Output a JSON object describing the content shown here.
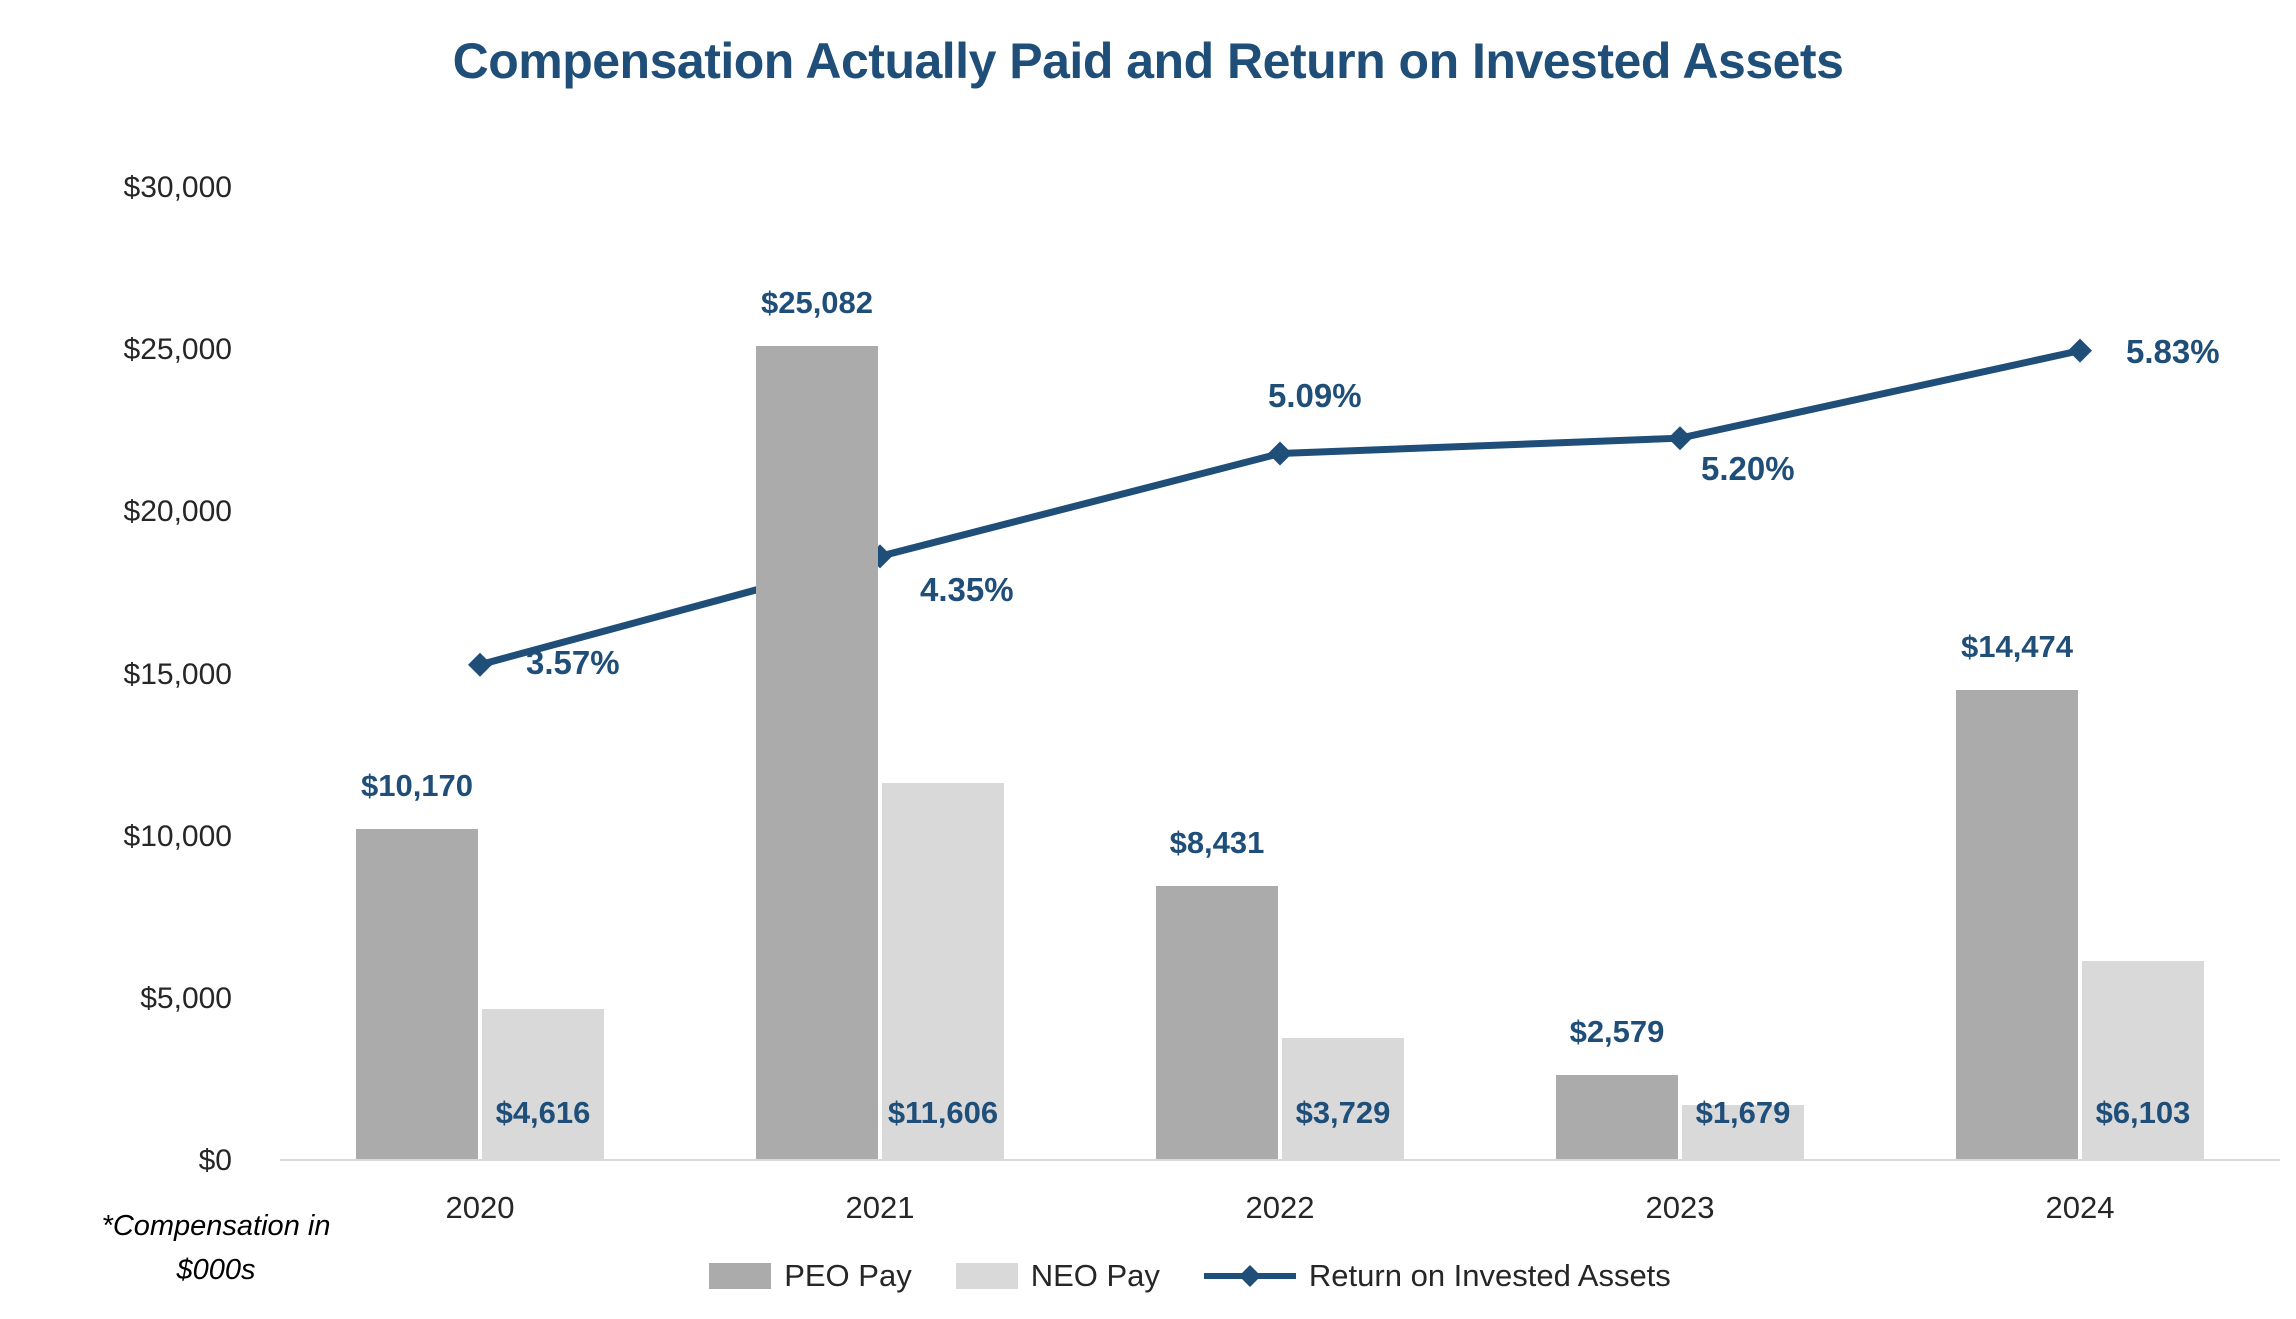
{
  "title": "Compensation Actually Paid and Return on Invested Assets",
  "footnote": "*Compensation in\n$000s",
  "colors": {
    "accent_navy": "#1F4E79",
    "peo_bar": "#ABABAB",
    "neo_bar": "#D9D9D9",
    "axis_line": "#D9D9D9",
    "tick_text": "#262626"
  },
  "chart_data": {
    "type": "bar",
    "subtype": "grouped-bar-with-line",
    "title": "Compensation Actually Paid and Return on Invested Assets",
    "categories": [
      "2020",
      "2021",
      "2022",
      "2023",
      "2024"
    ],
    "series": [
      {
        "name": "PEO Pay",
        "type": "bar",
        "color": "#ABABAB",
        "values": [
          10170,
          25082,
          8431,
          2579,
          14474
        ],
        "labels": [
          "$10,170",
          "$25,082",
          "$8,431",
          "$2,579",
          "$14,474"
        ]
      },
      {
        "name": "NEO Pay",
        "type": "bar",
        "color": "#D9D9D9",
        "values": [
          4616,
          11606,
          3729,
          1679,
          6103
        ],
        "labels": [
          "$4,616",
          "$11,606",
          "$3,729",
          "$1,679",
          "$6,103"
        ]
      },
      {
        "name": "Return on Invested Assets",
        "type": "line",
        "color": "#1F4E79",
        "values_pct": [
          3.57,
          4.35,
          5.09,
          5.2,
          5.83
        ],
        "labels": [
          "3.57%",
          "4.35%",
          "5.09%",
          "5.20%",
          "5.83%"
        ]
      }
    ],
    "y_axis": {
      "min": 0,
      "max": 30000,
      "step": 5000,
      "tick_labels": [
        "$0",
        "$5,000",
        "$10,000",
        "$15,000",
        "$20,000",
        "$25,000",
        "$30,000"
      ],
      "units_note": "*Compensation in $000s"
    },
    "secondary_axis": {
      "min": 0,
      "max": 7,
      "visible": false
    },
    "grid": false,
    "legend_position": "bottom"
  }
}
